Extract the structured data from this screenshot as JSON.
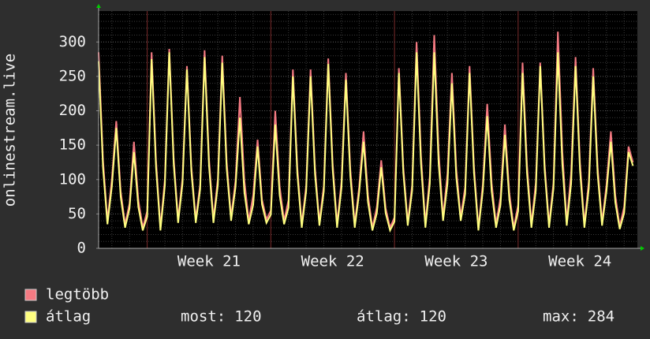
{
  "chart_data": {
    "type": "line",
    "ylabel": "onlinestream.live",
    "xlim": [
      0,
      122
    ],
    "xticks": [
      {
        "value": 25,
        "label": "Week 21"
      },
      {
        "value": 53,
        "label": "Week 22"
      },
      {
        "value": 81,
        "label": "Week 23"
      },
      {
        "value": 109,
        "label": "Week 24"
      }
    ],
    "ylim": [
      0,
      345
    ],
    "yticks": [
      0,
      50,
      100,
      150,
      200,
      250,
      300
    ],
    "grid": true,
    "series": [
      {
        "name": "legtöbb",
        "color": "#f47a82",
        "values": [
          285,
          128,
          40,
          100,
          185,
          83,
          35,
          65,
          155,
          70,
          30,
          54,
          285,
          128,
          30,
          100,
          290,
          131,
          42,
          102,
          265,
          119,
          42,
          93,
          288,
          130,
          42,
          101,
          280,
          126,
          45,
          98,
          220,
          99,
          40,
          77,
          158,
          71,
          42,
          55,
          200,
          90,
          40,
          70,
          260,
          117,
          35,
          91,
          260,
          117,
          38,
          91,
          276,
          124,
          35,
          97,
          255,
          115,
          35,
          89,
          170,
          77,
          30,
          60,
          128,
          58,
          30,
          45,
          262,
          118,
          38,
          92,
          300,
          135,
          35,
          105,
          310,
          140,
          45,
          109,
          255,
          115,
          45,
          89,
          265,
          119,
          30,
          93,
          210,
          95,
          35,
          74,
          180,
          81,
          30,
          63,
          270,
          122,
          35,
          95,
          270,
          122,
          35,
          95,
          315,
          142,
          38,
          110,
          278,
          125,
          35,
          97,
          262,
          118,
          38,
          92,
          170,
          77,
          32,
          60,
          148,
          125
        ]
      },
      {
        "name": "átlag",
        "color": "#ffff80",
        "values": [
          272,
          117,
          35,
          90,
          175,
          75,
          30,
          58,
          140,
          60,
          26,
          46,
          275,
          118,
          26,
          91,
          285,
          123,
          37,
          94,
          260,
          112,
          37,
          86,
          278,
          120,
          37,
          92,
          270,
          116,
          40,
          89,
          190,
          82,
          35,
          63,
          148,
          64,
          37,
          49,
          180,
          77,
          35,
          59,
          250,
          108,
          30,
          83,
          250,
          108,
          33,
          83,
          268,
          115,
          30,
          88,
          245,
          105,
          30,
          81,
          155,
          67,
          26,
          51,
          118,
          51,
          26,
          39,
          255,
          110,
          33,
          84,
          285,
          123,
          30,
          94,
          285,
          123,
          40,
          94,
          240,
          103,
          40,
          79,
          255,
          110,
          26,
          84,
          192,
          83,
          30,
          63,
          165,
          71,
          26,
          54,
          255,
          110,
          30,
          84,
          265,
          114,
          30,
          87,
          285,
          123,
          33,
          94,
          265,
          114,
          30,
          87,
          250,
          108,
          33,
          83,
          155,
          67,
          28,
          51,
          140,
          120
        ]
      }
    ],
    "stats": [
      {
        "label": "most:",
        "value": 120
      },
      {
        "label": "átlag:",
        "value": 120
      },
      {
        "label": "max:",
        "value": 284
      }
    ]
  }
}
